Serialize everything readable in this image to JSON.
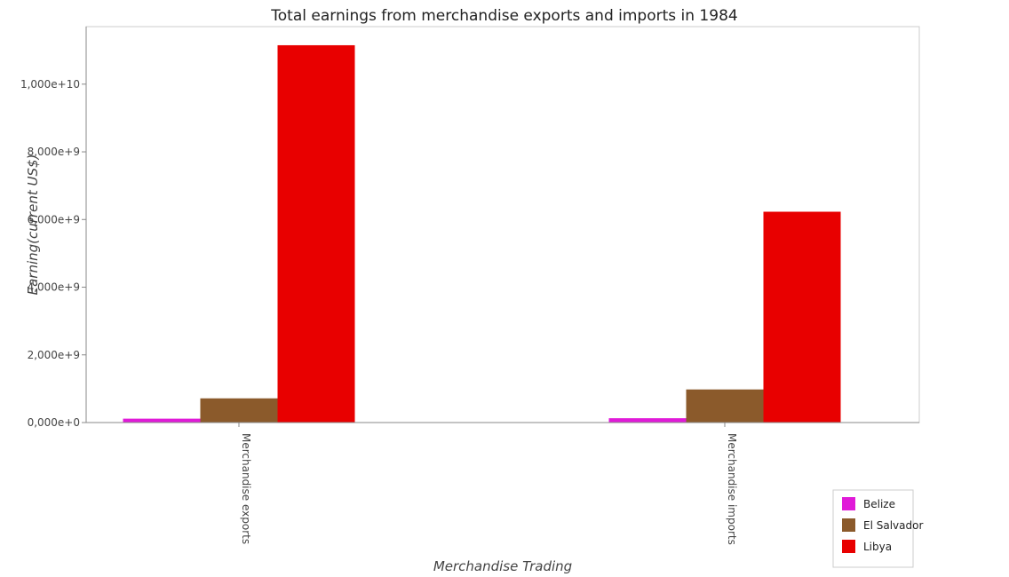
{
  "chart_data": {
    "type": "bar",
    "title": "Total earnings from merchandise exports and imports in 1984",
    "xlabel": "Merchandise Trading",
    "ylabel": "Earning(current US$)",
    "categories": [
      "Merchandise exports",
      "Merchandise imports"
    ],
    "series": [
      {
        "name": "Belize",
        "color": "#e01ad8",
        "values": [
          115000000,
          128000000
        ]
      },
      {
        "name": "El Salvador",
        "color": "#8b5a2b",
        "values": [
          715000000,
          978000000
        ]
      },
      {
        "name": "Libya",
        "color": "#e80000",
        "values": [
          11150000000,
          6230000000
        ]
      }
    ],
    "yticks": [
      "0,000e+0",
      "2,000e+9",
      "4,000e+9",
      "6,000e+9",
      "8,000e+9",
      "1,000e+10"
    ],
    "ylim": [
      0,
      11700000000
    ],
    "legend_position": "bottom-right"
  }
}
